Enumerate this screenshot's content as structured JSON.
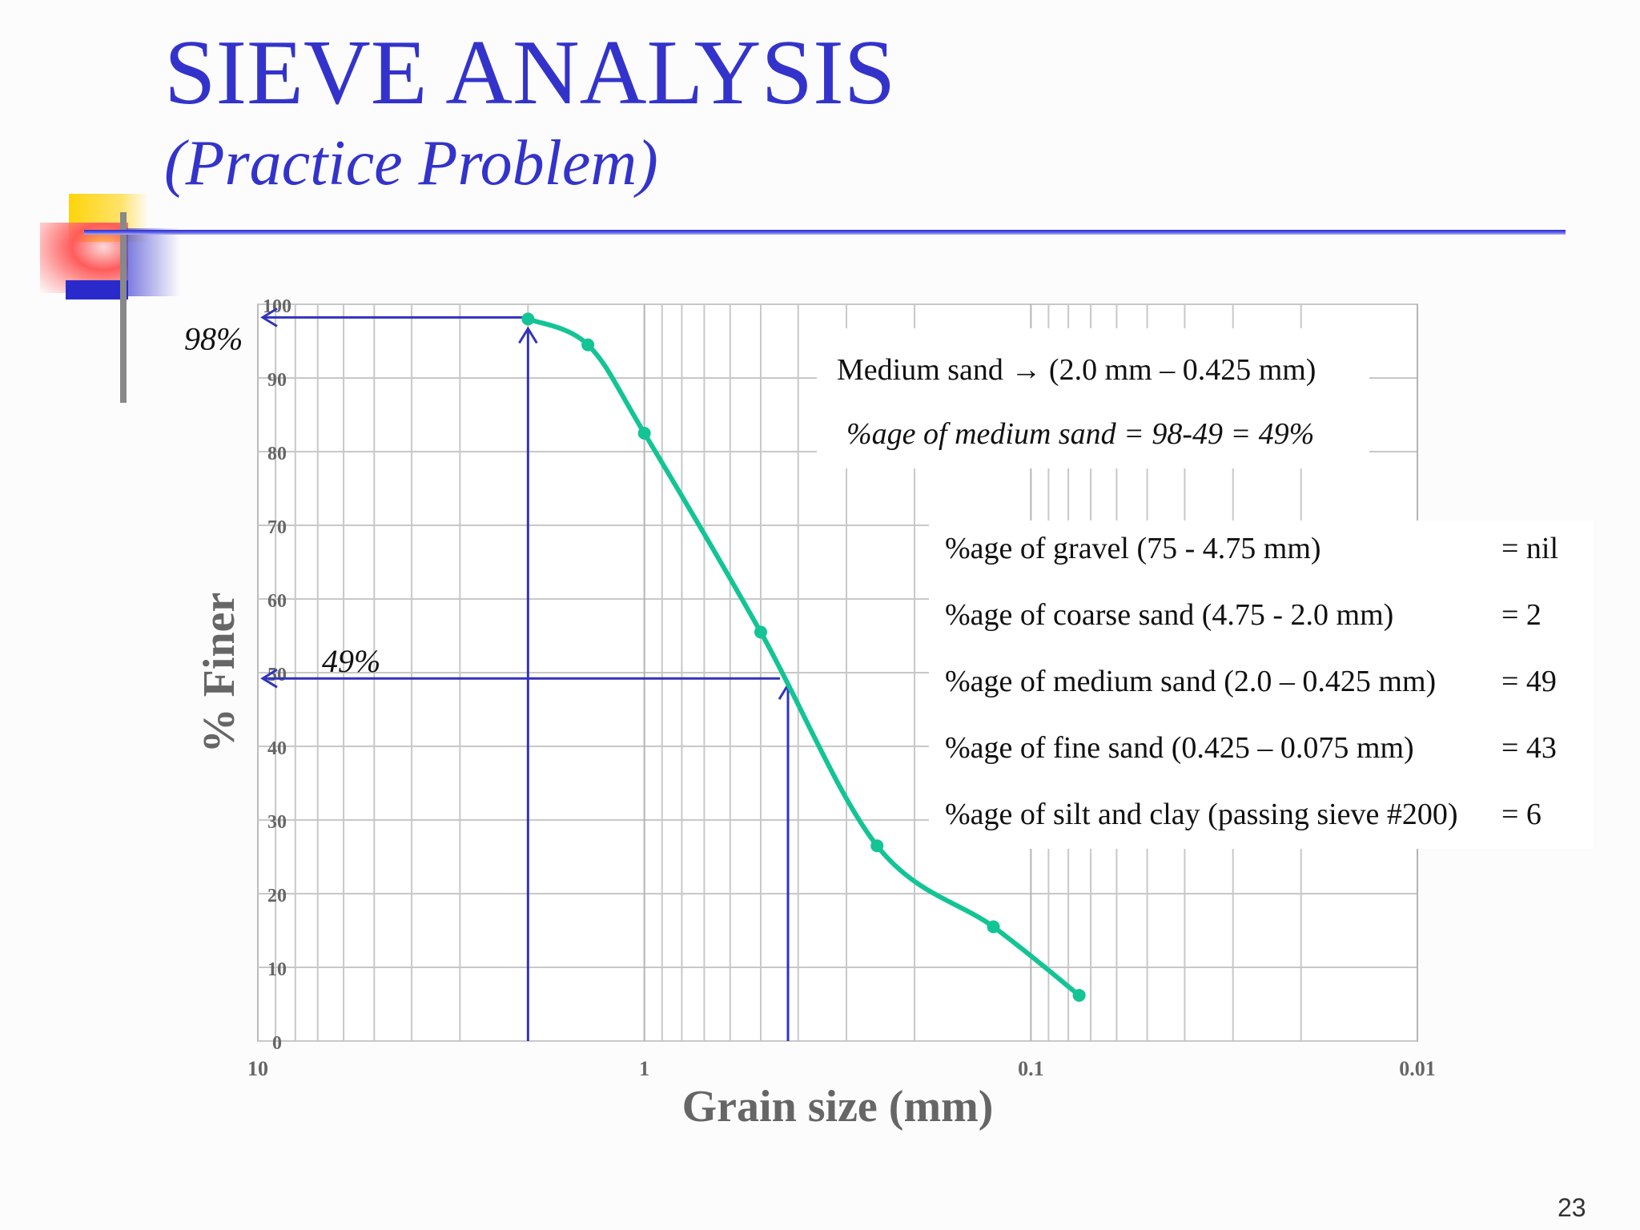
{
  "slide": {
    "title": "SIEVE ANALYSIS",
    "subtitle": "(Practice Problem)",
    "page_number": "23"
  },
  "colors": {
    "title": "#3333cc",
    "curve": "#13c495",
    "annotation": "#3333bb",
    "grid": "#c8c8c8",
    "axis_text": "#666666"
  },
  "callout": {
    "line1": "Medium sand → (2.0 mm – 0.425 mm)",
    "line2": "%age of medium sand = 98-49 = 49%"
  },
  "summary": {
    "rows": [
      {
        "label": "%age of gravel (75 - 4.75 mm)",
        "value": "= nil"
      },
      {
        "label": "%age of coarse sand (4.75 - 2.0 mm)",
        "value": "= 2"
      },
      {
        "label": "%age of medium sand (2.0 – 0.425 mm)",
        "value": "= 49"
      },
      {
        "label": "%age of fine sand (0.425 – 0.075 mm)",
        "value": "= 43"
      },
      {
        "label": "%age of silt and clay (passing sieve #200)",
        "value": "= 6"
      }
    ]
  },
  "chart_data": {
    "type": "line",
    "xlabel": "Grain size (mm)",
    "ylabel": "% Finer",
    "x_scale": "log",
    "x_reversed": true,
    "xlim": [
      10,
      0.01
    ],
    "ylim": [
      0,
      100
    ],
    "x_ticks": [
      {
        "value": 10,
        "label": "10"
      },
      {
        "value": 1,
        "label": "1"
      },
      {
        "value": 0.1,
        "label": "0.1"
      },
      {
        "value": 0.01,
        "label": "0.01"
      }
    ],
    "y_ticks": [
      0,
      10,
      20,
      30,
      40,
      50,
      60,
      70,
      80,
      90,
      100
    ],
    "grid": true,
    "series": [
      {
        "points": [
          {
            "x": 2.0,
            "y": 98
          },
          {
            "x": 1.4,
            "y": 94.5
          },
          {
            "x": 1.0,
            "y": 82.5
          },
          {
            "x": 0.5,
            "y": 55.5
          },
          {
            "x": 0.25,
            "y": 26.5
          },
          {
            "x": 0.125,
            "y": 15.5
          },
          {
            "x": 0.075,
            "y": 6.2
          }
        ]
      }
    ],
    "annotations": [
      {
        "label": "98%",
        "x": 2.0,
        "y": 98
      },
      {
        "label": "49%",
        "x": 0.425,
        "y": 49
      }
    ]
  }
}
